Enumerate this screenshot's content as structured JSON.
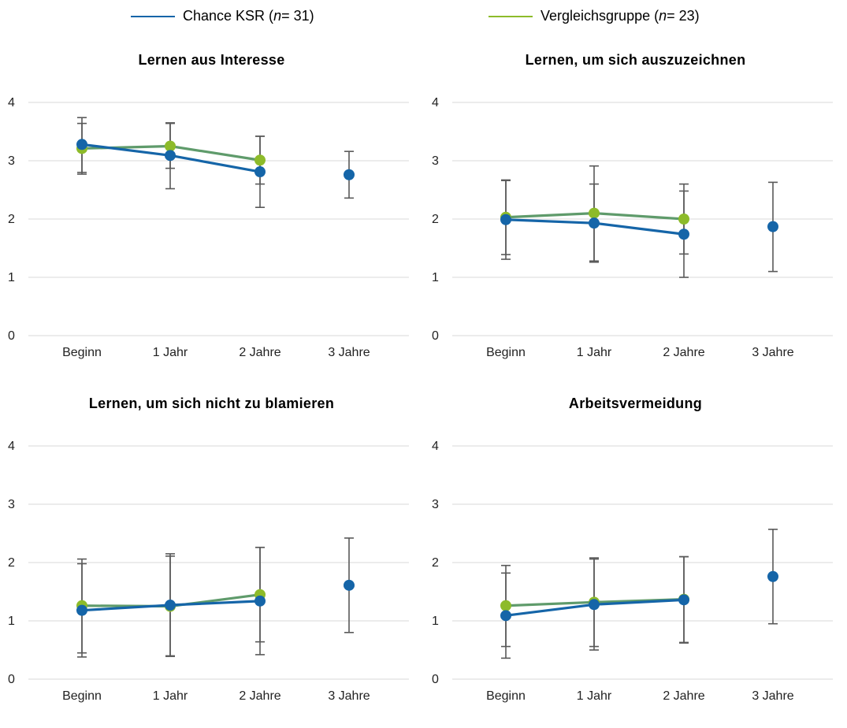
{
  "legend": {
    "series": [
      {
        "pre": "Chance KSR (",
        "n": "n",
        "post": " = 31)",
        "color": "#1565a8"
      },
      {
        "pre": "Vergleichsgruppe (",
        "n": "n",
        "post": " = 23)",
        "color": "#8dbb2a"
      }
    ]
  },
  "colors": {
    "ksr": "#1565a8",
    "vg_line": "#5f9b6b",
    "vg_marker": "#8dbb2a",
    "error_bar": "#595959",
    "grid": "#d9d9d9"
  },
  "chart_data": [
    {
      "type": "line",
      "title": "Lernen aus Interesse",
      "categories": [
        "Beginn",
        "1 Jahr",
        "2 Jahre",
        "3 Jahre"
      ],
      "ylim": [
        0,
        4
      ],
      "yticks": [
        "0",
        "1",
        "2",
        "3",
        "4"
      ],
      "grid": true,
      "series": [
        {
          "name": "Chance KSR (n = 31)",
          "values": [
            3.28,
            3.09,
            2.81,
            2.76
          ],
          "error_low": [
            2.8,
            2.52,
            2.2,
            2.36
          ],
          "error_high": [
            3.74,
            3.65,
            3.42,
            3.16
          ]
        },
        {
          "name": "Vergleichsgruppe (n = 23)",
          "values": [
            3.21,
            3.25,
            3.01,
            null
          ],
          "error_low": [
            2.77,
            2.87,
            2.6,
            null
          ],
          "error_high": [
            3.64,
            3.64,
            3.42,
            null
          ]
        }
      ]
    },
    {
      "type": "line",
      "title": "Lernen, um sich auszuzeichnen",
      "categories": [
        "Beginn",
        "1 Jahr",
        "2 Jahre",
        "3 Jahre"
      ],
      "ylim": [
        0,
        4
      ],
      "yticks": [
        "0",
        "1",
        "2",
        "3",
        "4"
      ],
      "grid": true,
      "series": [
        {
          "name": "Chance KSR (n = 31)",
          "values": [
            1.99,
            1.93,
            1.74,
            1.87
          ],
          "error_low": [
            1.31,
            1.28,
            1.0,
            1.1
          ],
          "error_high": [
            2.67,
            2.6,
            2.48,
            2.63
          ]
        },
        {
          "name": "Vergleichsgruppe (n = 23)",
          "values": [
            2.03,
            2.1,
            2.0,
            null
          ],
          "error_low": [
            1.39,
            1.26,
            1.4,
            null
          ],
          "error_high": [
            2.66,
            2.91,
            2.6,
            null
          ]
        }
      ]
    },
    {
      "type": "line",
      "title": "Lernen, um sich nicht zu blamieren",
      "categories": [
        "Beginn",
        "1 Jahr",
        "2 Jahre",
        "3 Jahre"
      ],
      "ylim": [
        0,
        4
      ],
      "yticks": [
        "0",
        "1",
        "2",
        "3",
        "4"
      ],
      "grid": true,
      "series": [
        {
          "name": "Chance KSR (n = 31)",
          "values": [
            1.18,
            1.27,
            1.34,
            1.61
          ],
          "error_low": [
            0.38,
            0.4,
            0.42,
            0.8
          ],
          "error_high": [
            1.98,
            2.15,
            2.26,
            2.42
          ]
        },
        {
          "name": "Vergleichsgruppe (n = 23)",
          "values": [
            1.26,
            1.25,
            1.45,
            null
          ],
          "error_low": [
            0.45,
            0.39,
            0.64,
            null
          ],
          "error_high": [
            2.06,
            2.11,
            2.26,
            null
          ]
        }
      ]
    },
    {
      "type": "line",
      "title": "Arbeitsvermeidung",
      "categories": [
        "Beginn",
        "1 Jahr",
        "2 Jahre",
        "3 Jahre"
      ],
      "ylim": [
        0,
        4
      ],
      "yticks": [
        "0",
        "1",
        "2",
        "3",
        "4"
      ],
      "grid": true,
      "series": [
        {
          "name": "Chance KSR (n = 31)",
          "values": [
            1.09,
            1.28,
            1.36,
            1.76
          ],
          "error_low": [
            0.36,
            0.5,
            0.62,
            0.95
          ],
          "error_high": [
            1.82,
            2.06,
            2.1,
            2.57
          ]
        },
        {
          "name": "Vergleichsgruppe (n = 23)",
          "values": [
            1.26,
            1.32,
            1.37,
            null
          ],
          "error_low": [
            0.56,
            0.56,
            0.63,
            null
          ],
          "error_high": [
            1.95,
            2.08,
            2.1,
            null
          ]
        }
      ]
    }
  ]
}
